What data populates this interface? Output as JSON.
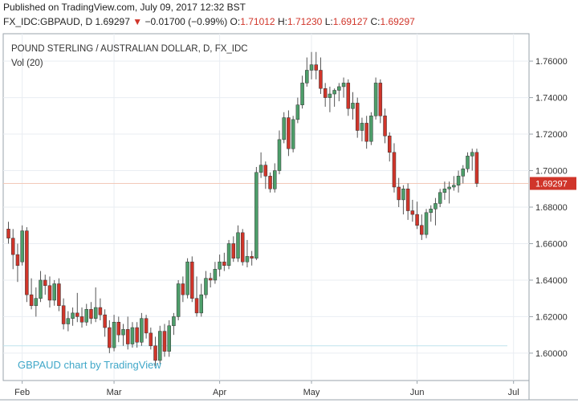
{
  "header": {
    "published": "Published on TradingView.com, July 09, 2017 12:32 BST",
    "symbol": "FX_IDC:GBPAUD, D",
    "last": "1.69297",
    "change_arrow": "▼",
    "change": "−0.01700 (−0.99%)",
    "o_label": "O:",
    "o_value": "1.71012",
    "h_label": "H:",
    "h_value": "1.71230",
    "l_label": "L:",
    "l_value": "1.69127",
    "c_label": "C:",
    "c_value": "1.69297"
  },
  "colors": {
    "up": "#4d9e6a",
    "down": "#d0352a",
    "grid": "#e9edf2",
    "price_line": "#f3c9b9",
    "watermark": "#3fa7c8"
  },
  "chart_data": {
    "type": "candlestick",
    "title": "POUND STERLING / AUSTRALIAN DOLLAR, D, FX_IDC",
    "volume_label": "Vol (20)",
    "watermark": "GBPAUD chart by TradingView",
    "ylim": [
      1.585,
      1.775
    ],
    "y_ticks": [
      "1.60000",
      "1.62000",
      "1.64000",
      "1.66000",
      "1.68000",
      "1.70000",
      "1.72000",
      "1.74000",
      "1.76000"
    ],
    "x_ticks": [
      {
        "label": "Feb",
        "index": 3
      },
      {
        "label": "Mar",
        "index": 23
      },
      {
        "label": "Apr",
        "index": 46
      },
      {
        "label": "May",
        "index": 66
      },
      {
        "label": "Jun",
        "index": 89
      },
      {
        "label": "Jul",
        "index": 110
      }
    ],
    "last_price": 1.69297,
    "last_price_label": "1.69297",
    "volume_line_value": 1.604,
    "candles": [
      [
        1.668,
        1.672,
        1.66,
        1.663
      ],
      [
        1.663,
        1.668,
        1.646,
        1.654
      ],
      [
        1.654,
        1.66,
        1.639,
        1.648
      ],
      [
        1.65,
        1.67,
        1.648,
        1.667
      ],
      [
        1.667,
        1.669,
        1.628,
        1.632
      ],
      [
        1.632,
        1.641,
        1.624,
        1.626
      ],
      [
        1.626,
        1.636,
        1.62,
        1.63
      ],
      [
        1.63,
        1.645,
        1.628,
        1.64
      ],
      [
        1.64,
        1.643,
        1.632,
        1.637
      ],
      [
        1.637,
        1.642,
        1.625,
        1.629
      ],
      [
        1.629,
        1.64,
        1.626,
        1.638
      ],
      [
        1.638,
        1.641,
        1.623,
        1.626
      ],
      [
        1.626,
        1.63,
        1.613,
        1.616
      ],
      [
        1.616,
        1.623,
        1.612,
        1.619
      ],
      [
        1.619,
        1.625,
        1.615,
        1.622
      ],
      [
        1.622,
        1.633,
        1.617,
        1.62
      ],
      [
        1.62,
        1.625,
        1.614,
        1.617
      ],
      [
        1.617,
        1.627,
        1.615,
        1.624
      ],
      [
        1.624,
        1.628,
        1.616,
        1.619
      ],
      [
        1.619,
        1.636,
        1.617,
        1.625
      ],
      [
        1.625,
        1.63,
        1.618,
        1.621
      ],
      [
        1.621,
        1.624,
        1.609,
        1.614
      ],
      [
        1.614,
        1.618,
        1.6,
        1.603
      ],
      [
        1.603,
        1.621,
        1.601,
        1.617
      ],
      [
        1.617,
        1.62,
        1.606,
        1.61
      ],
      [
        1.61,
        1.616,
        1.604,
        1.613
      ],
      [
        1.613,
        1.62,
        1.602,
        1.605
      ],
      [
        1.605,
        1.617,
        1.603,
        1.614
      ],
      [
        1.614,
        1.617,
        1.603,
        1.606
      ],
      [
        1.606,
        1.622,
        1.604,
        1.619
      ],
      [
        1.619,
        1.621,
        1.608,
        1.611
      ],
      [
        1.611,
        1.614,
        1.602,
        1.604
      ],
      [
        1.604,
        1.609,
        1.593,
        1.596
      ],
      [
        1.596,
        1.615,
        1.594,
        1.612
      ],
      [
        1.612,
        1.616,
        1.598,
        1.601
      ],
      [
        1.601,
        1.618,
        1.598,
        1.615
      ],
      [
        1.615,
        1.622,
        1.61,
        1.62
      ],
      [
        1.62,
        1.64,
        1.618,
        1.638
      ],
      [
        1.638,
        1.642,
        1.628,
        1.632
      ],
      [
        1.632,
        1.652,
        1.63,
        1.65
      ],
      [
        1.65,
        1.653,
        1.628,
        1.63
      ],
      [
        1.63,
        1.642,
        1.62,
        1.622
      ],
      [
        1.622,
        1.638,
        1.62,
        1.632
      ],
      [
        1.632,
        1.645,
        1.63,
        1.641
      ],
      [
        1.641,
        1.644,
        1.636,
        1.64
      ],
      [
        1.64,
        1.65,
        1.638,
        1.646
      ],
      [
        1.646,
        1.654,
        1.642,
        1.65
      ],
      [
        1.65,
        1.655,
        1.645,
        1.648
      ],
      [
        1.648,
        1.662,
        1.646,
        1.66
      ],
      [
        1.66,
        1.664,
        1.65,
        1.652
      ],
      [
        1.652,
        1.67,
        1.65,
        1.666
      ],
      [
        1.666,
        1.668,
        1.648,
        1.65
      ],
      [
        1.65,
        1.662,
        1.647,
        1.653
      ],
      [
        1.653,
        1.656,
        1.648,
        1.652
      ],
      [
        1.652,
        1.702,
        1.651,
        1.699
      ],
      [
        1.699,
        1.71,
        1.696,
        1.703
      ],
      [
        1.703,
        1.705,
        1.69,
        1.697
      ],
      [
        1.697,
        1.699,
        1.688,
        1.69
      ],
      [
        1.69,
        1.704,
        1.688,
        1.7
      ],
      [
        1.7,
        1.722,
        1.698,
        1.717
      ],
      [
        1.717,
        1.732,
        1.715,
        1.729
      ],
      [
        1.729,
        1.733,
        1.708,
        1.712
      ],
      [
        1.712,
        1.73,
        1.71,
        1.728
      ],
      [
        1.728,
        1.74,
        1.726,
        1.736
      ],
      [
        1.736,
        1.752,
        1.734,
        1.748
      ],
      [
        1.748,
        1.762,
        1.746,
        1.755
      ],
      [
        1.755,
        1.765,
        1.75,
        1.758
      ],
      [
        1.758,
        1.765,
        1.75,
        1.755
      ],
      [
        1.755,
        1.762,
        1.742,
        1.745
      ],
      [
        1.745,
        1.748,
        1.735,
        1.74
      ],
      [
        1.74,
        1.746,
        1.732,
        1.742
      ],
      [
        1.742,
        1.745,
        1.735,
        1.744
      ],
      [
        1.744,
        1.748,
        1.738,
        1.746
      ],
      [
        1.746,
        1.751,
        1.74,
        1.748
      ],
      [
        1.748,
        1.75,
        1.73,
        1.734
      ],
      [
        1.734,
        1.743,
        1.728,
        1.737
      ],
      [
        1.737,
        1.74,
        1.718,
        1.722
      ],
      [
        1.722,
        1.729,
        1.716,
        1.726
      ],
      [
        1.726,
        1.73,
        1.712,
        1.716
      ],
      [
        1.716,
        1.732,
        1.714,
        1.73
      ],
      [
        1.73,
        1.751,
        1.728,
        1.748
      ],
      [
        1.748,
        1.75,
        1.726,
        1.73
      ],
      [
        1.73,
        1.734,
        1.715,
        1.719
      ],
      [
        1.719,
        1.721,
        1.705,
        1.71
      ],
      [
        1.71,
        1.715,
        1.688,
        1.691
      ],
      [
        1.691,
        1.696,
        1.68,
        1.684
      ],
      [
        1.684,
        1.692,
        1.676,
        1.69
      ],
      [
        1.69,
        1.693,
        1.673,
        1.678
      ],
      [
        1.678,
        1.684,
        1.672,
        1.676
      ],
      [
        1.676,
        1.683,
        1.668,
        1.67
      ],
      [
        1.67,
        1.676,
        1.662,
        1.665
      ],
      [
        1.665,
        1.679,
        1.663,
        1.677
      ],
      [
        1.677,
        1.681,
        1.672,
        1.679
      ],
      [
        1.679,
        1.685,
        1.67,
        1.682
      ],
      [
        1.682,
        1.69,
        1.68,
        1.688
      ],
      [
        1.688,
        1.694,
        1.684,
        1.69
      ],
      [
        1.69,
        1.694,
        1.682,
        1.691
      ],
      [
        1.691,
        1.697,
        1.689,
        1.692
      ],
      [
        1.692,
        1.7,
        1.688,
        1.697
      ],
      [
        1.697,
        1.703,
        1.693,
        1.701
      ],
      [
        1.701,
        1.71,
        1.699,
        1.708
      ],
      [
        1.708,
        1.712,
        1.7,
        1.71
      ],
      [
        1.71,
        1.712,
        1.691,
        1.693
      ]
    ]
  }
}
